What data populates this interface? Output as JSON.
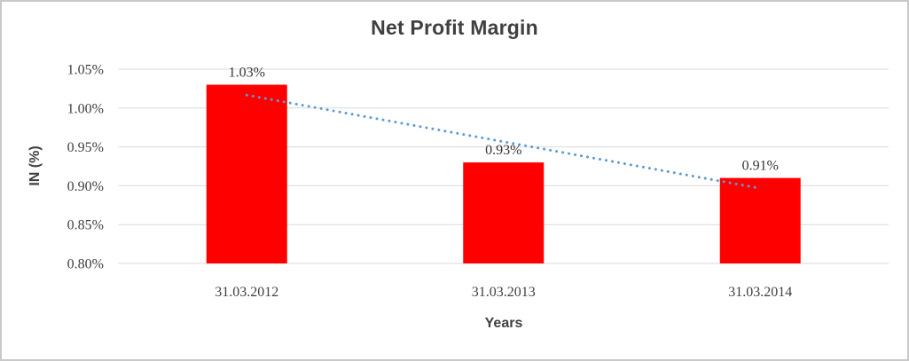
{
  "chart_data": {
    "type": "bar",
    "title": "Net Profit Margin",
    "xlabel": "Years",
    "ylabel": "IN (%)",
    "categories": [
      "31.03.2012",
      "31.03.2013",
      "31.03.2014"
    ],
    "values": [
      1.03,
      0.93,
      0.91
    ],
    "data_labels": [
      "1.03%",
      "0.93%",
      "0.91%"
    ],
    "ylim": [
      0.8,
      1.05
    ],
    "ytick_step": 0.05,
    "ytick_labels": [
      "0.80%",
      "0.85%",
      "0.90%",
      "0.95%",
      "1.00%",
      "1.05%"
    ],
    "grid": true,
    "legend": "none",
    "bar_color": "#ff0000",
    "trendline": {
      "type": "linear",
      "style": "dotted",
      "color": "#5b9bd5"
    },
    "colors": {
      "title_text": "#404040",
      "axis_text": "#404040",
      "label_text": "#353535",
      "gridline": "#d9d9d9",
      "frame_border": "#c9c9c9",
      "background": "#ffffff"
    }
  }
}
